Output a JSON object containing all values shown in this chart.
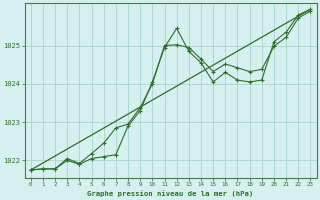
{
  "title": "Graphe pression niveau de la mer (hPa)",
  "background_color": "#d6f0f0",
  "grid_color": "#b0d8d0",
  "line_color": "#2d6e2d",
  "border_color": "#4a7a4a",
  "xlim": [
    -0.5,
    23.5
  ],
  "ylim": [
    1021.55,
    1026.1
  ],
  "yticks": [
    1022,
    1023,
    1024,
    1025
  ],
  "xticks": [
    0,
    1,
    2,
    3,
    4,
    5,
    6,
    7,
    8,
    9,
    10,
    11,
    12,
    13,
    14,
    15,
    16,
    17,
    18,
    19,
    20,
    21,
    22,
    23
  ],
  "series1": [
    1021.75,
    1021.78,
    1021.78,
    1022.0,
    1021.9,
    1022.05,
    1022.1,
    1022.15,
    1022.9,
    1023.3,
    1024.05,
    1024.95,
    1025.45,
    1024.85,
    1024.55,
    1024.05,
    1024.3,
    1024.1,
    1024.05,
    1024.1,
    1025.1,
    1025.35,
    1025.8,
    1025.95
  ],
  "series2": [
    1021.75,
    1021.78,
    1021.78,
    1022.05,
    1021.92,
    1022.18,
    1022.45,
    1022.85,
    1022.95,
    1023.38,
    1024.0,
    1025.0,
    1025.02,
    1024.95,
    1024.65,
    1024.32,
    1024.52,
    1024.42,
    1024.32,
    1024.38,
    1024.98,
    1025.22,
    1025.72,
    1025.9
  ],
  "series3_x": [
    0,
    23
  ],
  "series3_y": [
    1021.75,
    1025.95
  ],
  "figsize": [
    3.2,
    2.0
  ],
  "dpi": 100
}
